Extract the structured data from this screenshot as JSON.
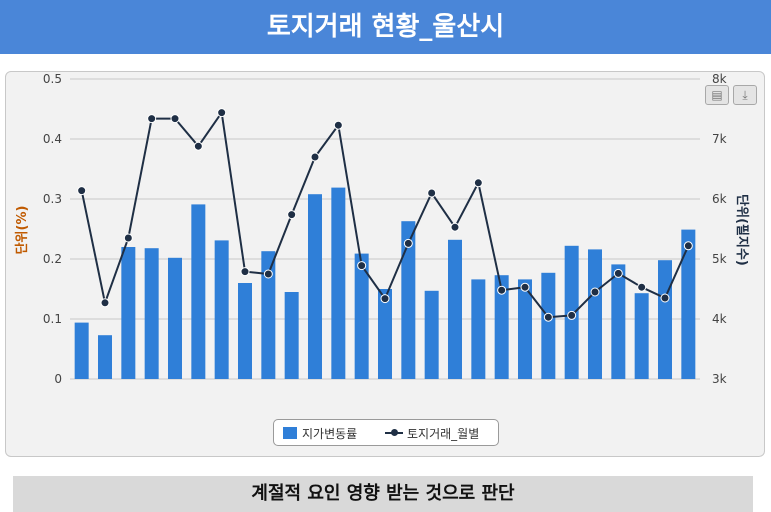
{
  "header": {
    "title": "토지거래 현황_울산시"
  },
  "footer": {
    "text": "계절적 요인 영향 받는 것으로 판단"
  },
  "toolbar": {
    "print_icon": "print-icon",
    "download_icon": "download-icon"
  },
  "colors": {
    "bar": "#2f7fd8",
    "line": "#1f2f45",
    "left_axis_label": "#c05a00",
    "banner": "#4a86d8"
  },
  "chart_data": {
    "type": "bar",
    "title": "",
    "ylabel": "단위(%)",
    "y2label": "단위(필지수)",
    "ylim": [
      0,
      0.5
    ],
    "y2lim": [
      3000,
      8000
    ],
    "yticks": [
      "0",
      "0.1",
      "0.2",
      "0.3",
      "0.4",
      "0.5"
    ],
    "y2ticks": [
      "3k",
      "4k",
      "5k",
      "6k",
      "7k",
      "8k"
    ],
    "grid": true,
    "legend_position": "bottom",
    "series": [
      {
        "name": "지가변동률",
        "type": "bar",
        "axis": "left",
        "values": [
          0.094,
          0.073,
          0.22,
          0.218,
          0.202,
          0.291,
          0.231,
          0.16,
          0.213,
          0.145,
          0.308,
          0.319,
          0.209,
          0.15,
          0.263,
          0.147,
          0.232,
          0.166,
          0.173,
          0.166,
          0.177,
          0.222,
          0.216,
          0.191,
          0.143,
          0.198,
          0.249
        ]
      },
      {
        "name": "토지거래_월별",
        "type": "line",
        "axis": "right",
        "values": [
          6140,
          4270,
          5350,
          7340,
          7340,
          6880,
          7440,
          4790,
          4750,
          5740,
          6700,
          7230,
          4890,
          4340,
          5260,
          6100,
          5530,
          6270,
          4480,
          4530,
          4030,
          4060,
          4450,
          4760,
          4530,
          4350,
          5220
        ]
      }
    ]
  }
}
